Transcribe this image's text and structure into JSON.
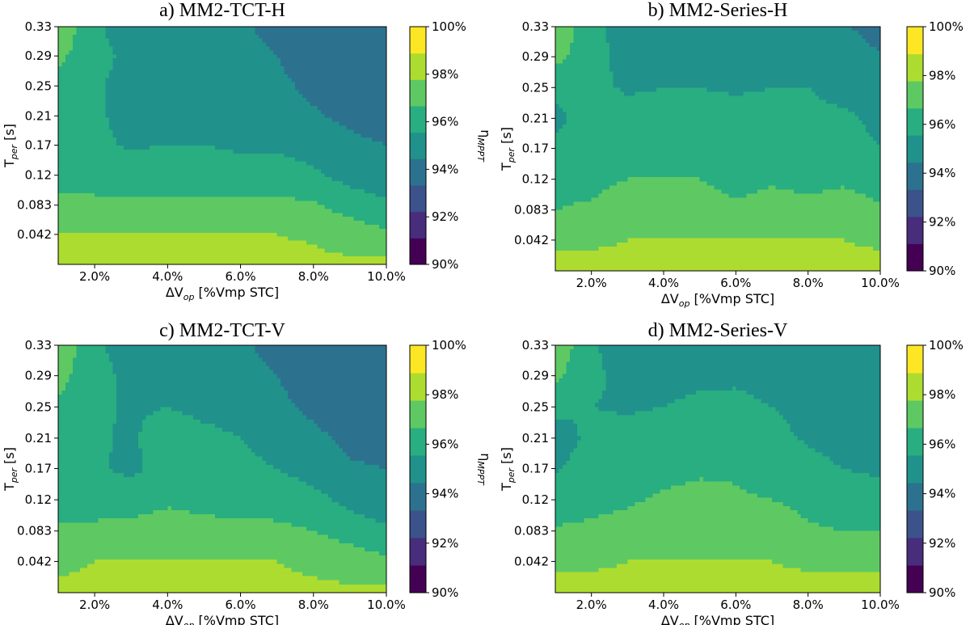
{
  "colors": {
    "levels": [
      "#440154",
      "#472d7b",
      "#3b528b",
      "#2c728e",
      "#21918c",
      "#28ae80",
      "#5ec962",
      "#addc30",
      "#fde725"
    ],
    "background": "#ffffff",
    "axis": "#000000"
  },
  "chart_data": [
    {
      "type": "heatmap",
      "subtype": "filled-contour",
      "title": "a) MM2-TCT-H",
      "xlabel": "ΔV_op [%Vmp STC]",
      "ylabel": "T_per [s]",
      "colorbar_label": "η_MPPT",
      "x_ticks": [
        "2.0%",
        "4.0%",
        "6.0%",
        "8.0%",
        "10.0%"
      ],
      "y_ticks": [
        "0.33",
        "0.29",
        "0.25",
        "0.21",
        "0.17",
        "0.12",
        "0.083",
        "0.042"
      ],
      "colorbar_ticks": [
        "100%",
        "98%",
        "96%",
        "94%",
        "92%",
        "90%"
      ],
      "xlim": [
        1,
        10
      ],
      "ylim": [
        0,
        0.333
      ],
      "x": [
        1,
        2,
        3,
        4,
        5,
        6,
        7,
        8,
        9,
        10
      ],
      "y": [
        0,
        0.042,
        0.083,
        0.125,
        0.167,
        0.208,
        0.25,
        0.292,
        0.333
      ],
      "levels": [
        90,
        91,
        92,
        93,
        94,
        95,
        96,
        97,
        98,
        99,
        100
      ],
      "z": [
        [
          98.2,
          98.2,
          98.2,
          98.2,
          98.2,
          98.2,
          98.2,
          98.2,
          98.2,
          98.2
        ],
        [
          98.0,
          98.0,
          98.0,
          98.0,
          98.0,
          98.0,
          98.0,
          97.9,
          97.5,
          97.2
        ],
        [
          97.3,
          97.2,
          97.2,
          97.2,
          97.2,
          97.2,
          97.2,
          97.1,
          96.6,
          96.2
        ],
        [
          96.6,
          96.6,
          96.6,
          96.6,
          96.6,
          96.6,
          96.6,
          96.2,
          95.6,
          95.3
        ],
        [
          96.4,
          96.2,
          95.9,
          96.0,
          96.0,
          95.8,
          95.8,
          95.5,
          95.2,
          95.0
        ],
        [
          96.5,
          96.2,
          95.6,
          95.8,
          95.6,
          95.5,
          95.4,
          95.1,
          94.8,
          94.6
        ],
        [
          96.8,
          96.2,
          95.5,
          95.4,
          95.3,
          95.3,
          95.2,
          94.8,
          94.4,
          94.3
        ],
        [
          97.2,
          96.4,
          95.7,
          95.4,
          95.3,
          95.2,
          95.0,
          94.5,
          94.2,
          94.2
        ],
        [
          97.8,
          96.2,
          95.4,
          95.3,
          95.2,
          95.1,
          94.8,
          94.3,
          94.2,
          94.0
        ]
      ]
    },
    {
      "type": "heatmap",
      "subtype": "filled-contour",
      "title": "b) MM2-Series-H",
      "xlabel": "ΔV_op [%Vmp STC]",
      "ylabel": "T_per [s]",
      "colorbar_label": "η_MPPT",
      "x_ticks": [
        "2.0%",
        "4.0%",
        "6.0%",
        "8.0%",
        "10.0%"
      ],
      "y_ticks": [
        "0.33",
        "0.29",
        "0.25",
        "0.21",
        "0.17",
        "0.12",
        "0.083",
        "0.042"
      ],
      "colorbar_ticks": [
        "100%",
        "98%",
        "96%",
        "94%",
        "92%",
        "90%"
      ],
      "xlim": [
        1,
        10
      ],
      "ylim": [
        0,
        0.333
      ],
      "x": [
        1,
        2,
        3,
        4,
        5,
        6,
        7,
        8,
        9,
        10
      ],
      "y": [
        0,
        0.042,
        0.083,
        0.125,
        0.167,
        0.208,
        0.25,
        0.292,
        0.333
      ],
      "levels": [
        90,
        91,
        92,
        93,
        94,
        95,
        96,
        97,
        98,
        99,
        100
      ],
      "z": [
        [
          98.2,
          98.2,
          98.2,
          98.2,
          98.2,
          98.2,
          98.2,
          98.2,
          98.2,
          98.2
        ],
        [
          97.9,
          97.9,
          98.0,
          98.0,
          98.0,
          98.0,
          98.0,
          98.0,
          98.0,
          97.9
        ],
        [
          97.0,
          97.1,
          97.4,
          97.3,
          97.3,
          97.1,
          97.3,
          97.2,
          97.3,
          97.1
        ],
        [
          96.8,
          96.8,
          97.0,
          97.0,
          97.0,
          96.8,
          96.9,
          96.8,
          96.9,
          96.7
        ],
        [
          96.2,
          96.5,
          96.6,
          96.6,
          96.6,
          96.6,
          96.6,
          96.6,
          96.5,
          96.0
        ],
        [
          95.8,
          96.4,
          96.3,
          96.3,
          96.3,
          96.3,
          96.3,
          96.3,
          96.2,
          95.7
        ],
        [
          96.2,
          96.2,
          95.9,
          96.0,
          96.0,
          95.9,
          96.0,
          96.0,
          95.6,
          95.3
        ],
        [
          97.3,
          96.4,
          95.6,
          95.6,
          95.6,
          95.6,
          95.6,
          95.6,
          95.4,
          95.1
        ],
        [
          97.8,
          96.3,
          95.5,
          95.5,
          95.5,
          95.5,
          95.5,
          95.3,
          95.1,
          94.6
        ]
      ]
    },
    {
      "type": "heatmap",
      "subtype": "filled-contour",
      "title": "c) MM2-TCT-V",
      "xlabel": "ΔV_op [%Vmp STC]",
      "ylabel": "T_per [s]",
      "colorbar_label": "η_MPPT",
      "x_ticks": [
        "2.0%",
        "4.0%",
        "6.0%",
        "8.0%",
        "10.0%"
      ],
      "y_ticks": [
        "0.33",
        "0.29",
        "0.25",
        "0.21",
        "0.17",
        "0.12",
        "0.083",
        "0.042"
      ],
      "colorbar_ticks": [
        "100%",
        "98%",
        "96%",
        "94%",
        "92%",
        "90%"
      ],
      "xlim": [
        1,
        10
      ],
      "ylim": [
        0,
        0.333
      ],
      "x": [
        1,
        2,
        3,
        4,
        5,
        6,
        7,
        8,
        9,
        10
      ],
      "y": [
        0,
        0.042,
        0.083,
        0.125,
        0.167,
        0.208,
        0.25,
        0.292,
        0.333
      ],
      "levels": [
        90,
        91,
        92,
        93,
        94,
        95,
        96,
        97,
        98,
        99,
        100
      ],
      "z": [
        [
          98.2,
          98.2,
          98.2,
          98.2,
          98.2,
          98.2,
          98.2,
          98.2,
          98.2,
          98.2
        ],
        [
          97.8,
          98.0,
          98.0,
          98.0,
          98.0,
          98.0,
          98.0,
          97.8,
          97.5,
          97.2
        ],
        [
          97.1,
          97.2,
          97.2,
          97.3,
          97.2,
          97.2,
          97.2,
          97.0,
          96.6,
          96.2
        ],
        [
          96.6,
          96.6,
          96.7,
          96.9,
          96.8,
          96.7,
          96.6,
          96.3,
          95.7,
          95.2
        ],
        [
          96.4,
          96.2,
          95.7,
          96.6,
          96.4,
          96.2,
          96.0,
          95.6,
          95.1,
          95.0
        ],
        [
          96.6,
          96.2,
          95.8,
          96.8,
          96.4,
          96.0,
          95.7,
          95.2,
          94.8,
          94.6
        ],
        [
          96.9,
          96.3,
          95.8,
          96.0,
          95.6,
          95.4,
          95.2,
          94.8,
          94.3,
          94.2
        ],
        [
          97.3,
          96.4,
          95.7,
          95.4,
          95.3,
          95.2,
          95.0,
          94.6,
          94.1,
          94.0
        ],
        [
          97.8,
          96.2,
          95.5,
          95.3,
          95.2,
          95.1,
          94.8,
          94.3,
          94.1,
          94.0
        ]
      ]
    },
    {
      "type": "heatmap",
      "subtype": "filled-contour",
      "title": "d) MM2-Series-V",
      "xlabel": "ΔV_op [%Vmp STC]",
      "ylabel": "T_per [s]",
      "colorbar_label": "η_MPPT",
      "x_ticks": [
        "2.0%",
        "4.0%",
        "6.0%",
        "8.0%",
        "10.0%"
      ],
      "y_ticks": [
        "0.33",
        "0.29",
        "0.25",
        "0.21",
        "0.17",
        "0.12",
        "0.083",
        "0.042"
      ],
      "colorbar_ticks": [
        "100%",
        "98%",
        "96%",
        "94%",
        "92%",
        "90%"
      ],
      "xlim": [
        1,
        10
      ],
      "ylim": [
        0,
        0.333
      ],
      "x": [
        1,
        2,
        3,
        4,
        5,
        6,
        7,
        8,
        9,
        10
      ],
      "y": [
        0,
        0.042,
        0.083,
        0.125,
        0.167,
        0.208,
        0.25,
        0.292,
        0.333
      ],
      "levels": [
        90,
        91,
        92,
        93,
        94,
        95,
        96,
        97,
        98,
        99,
        100
      ],
      "z": [
        [
          98.2,
          98.2,
          98.2,
          98.2,
          98.2,
          98.2,
          98.2,
          98.2,
          98.2,
          98.2
        ],
        [
          97.9,
          97.9,
          98.0,
          98.0,
          98.0,
          98.0,
          98.0,
          97.9,
          97.9,
          97.9
        ],
        [
          97.1,
          97.2,
          97.3,
          97.5,
          97.6,
          97.5,
          97.4,
          97.1,
          97.0,
          97.0
        ],
        [
          96.5,
          96.7,
          96.9,
          97.1,
          97.2,
          97.1,
          97.0,
          96.8,
          96.6,
          96.5
        ],
        [
          95.9,
          96.4,
          96.6,
          96.8,
          96.9,
          96.9,
          96.6,
          96.3,
          96.0,
          95.8
        ],
        [
          95.6,
          96.2,
          96.3,
          96.5,
          96.6,
          96.6,
          96.3,
          95.9,
          95.6,
          95.5
        ],
        [
          96.2,
          96.0,
          95.9,
          96.0,
          96.2,
          96.3,
          96.0,
          95.6,
          95.4,
          95.4
        ],
        [
          97.2,
          96.2,
          95.7,
          95.7,
          95.8,
          95.8,
          95.6,
          95.4,
          95.3,
          95.3
        ],
        [
          97.8,
          96.1,
          95.6,
          95.5,
          95.5,
          95.5,
          95.4,
          95.3,
          95.3,
          95.3
        ]
      ]
    }
  ]
}
